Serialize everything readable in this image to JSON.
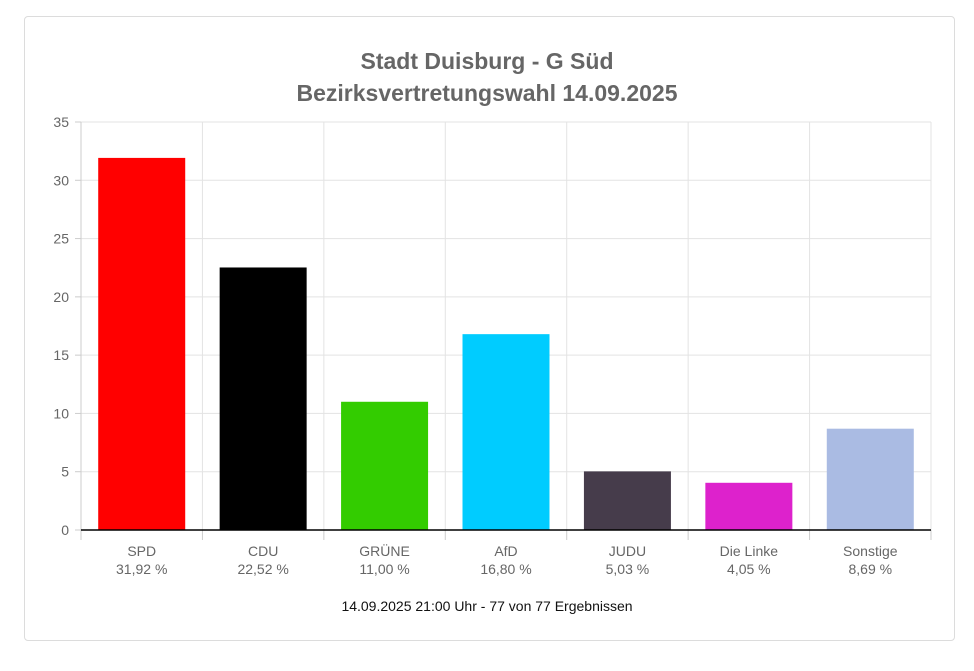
{
  "chart_data": {
    "type": "bar",
    "title": "Stadt Duisburg - G Süd",
    "subtitle": "Bezirksvertretungswahl 14.09.2025",
    "categories": [
      "SPD",
      "CDU",
      "GRÜNE",
      "AfD",
      "JUDU",
      "Die Linke",
      "Sonstige"
    ],
    "values": [
      31.92,
      22.52,
      11.0,
      16.8,
      5.03,
      4.05,
      8.69
    ],
    "value_labels": [
      "31,92 %",
      "22,52 %",
      "11,00 %",
      "16,80 %",
      "5,03 %",
      "4,05 %",
      "8,69 %"
    ],
    "colors": [
      "#ff0000",
      "#000000",
      "#33cc00",
      "#00ccff",
      "#463c4b",
      "#dd22cc",
      "#aabbe3"
    ],
    "ylim": [
      0,
      35
    ],
    "yticks": [
      0,
      5,
      10,
      15,
      20,
      25,
      30,
      35
    ],
    "grid": true,
    "footer": "14.09.2025 21:00 Uhr - 77 von 77 Ergebnissen"
  }
}
